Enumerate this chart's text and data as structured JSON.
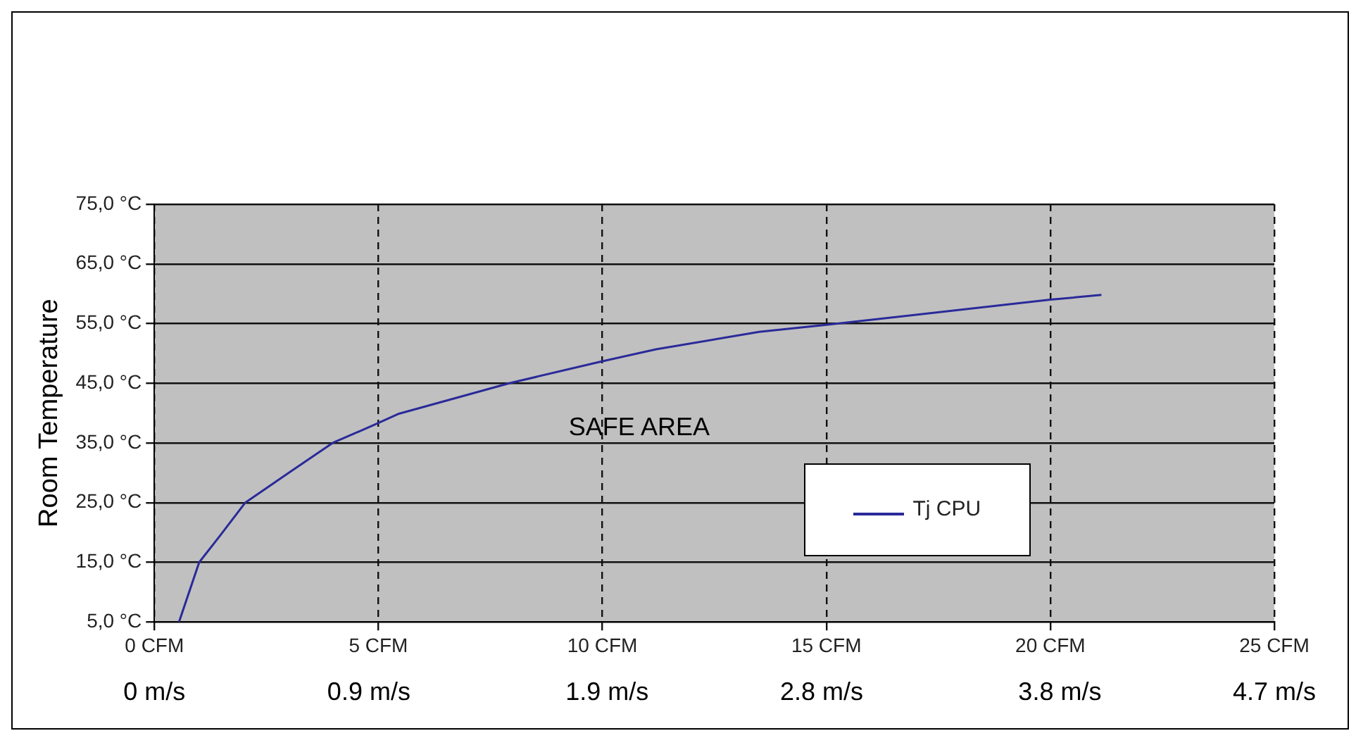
{
  "chart_data": {
    "type": "line",
    "ylabel": "Room Temperature",
    "annotations": [
      "SAFE AREA"
    ],
    "series": [
      {
        "name": "Tj CPU",
        "color": "#2a2a9a",
        "x": [
          0.55,
          1.0,
          1.46,
          2.03,
          3.06,
          3.98,
          4.93,
          5.46,
          7.92,
          9.95,
          11.2,
          13.5,
          15,
          20,
          21.14
        ],
        "values": [
          5,
          15,
          19.4,
          25,
          30.3,
          35,
          38.1,
          39.9,
          45,
          48.6,
          50.7,
          53.6,
          54.8,
          59,
          59.8
        ]
      }
    ],
    "xlim": [
      0,
      25
    ],
    "xticks": [
      {
        "value": 0,
        "label": "0 CFM"
      },
      {
        "value": 5,
        "label": "5 CFM"
      },
      {
        "value": 10,
        "label": "10 CFM"
      },
      {
        "value": 15,
        "label": "15 CFM"
      },
      {
        "value": 20,
        "label": "20 CFM"
      },
      {
        "value": 25,
        "label": "25 CFM"
      }
    ],
    "x2lim": [
      0,
      4.7
    ],
    "x2ticks": [
      {
        "value": 0,
        "label": "0 m/s"
      },
      {
        "value": 0.9,
        "label": "0.9 m/s"
      },
      {
        "value": 1.9,
        "label": "1.9 m/s"
      },
      {
        "value": 2.8,
        "label": "2.8 m/s"
      },
      {
        "value": 3.8,
        "label": "3.8 m/s"
      },
      {
        "value": 4.7,
        "label": "4.7 m/s"
      }
    ],
    "ylim": [
      5,
      75
    ],
    "yticks": [
      {
        "value": 5,
        "label": "5,0 °C"
      },
      {
        "value": 15,
        "label": "15,0 °C"
      },
      {
        "value": 25,
        "label": "25,0 °C"
      },
      {
        "value": 35,
        "label": "35,0 °C"
      },
      {
        "value": 45,
        "label": "45,0 °C"
      },
      {
        "value": 55,
        "label": "55,0 °C"
      },
      {
        "value": 65,
        "label": "65,0 °C"
      },
      {
        "value": 75,
        "label": "75,0 °C"
      }
    ],
    "grid": true,
    "legend": "right",
    "marker": "none",
    "line_style": "solid"
  }
}
